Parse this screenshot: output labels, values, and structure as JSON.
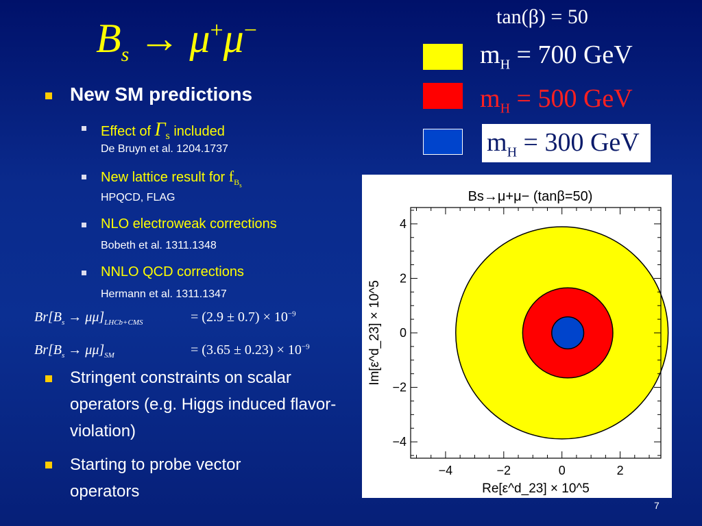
{
  "title": {
    "base": "B",
    "sub": "s",
    "arrow": "→",
    "mu1": "μ",
    "sup1": "+",
    "mu2": "μ",
    "sup2": "−"
  },
  "tanb_label": "tan(β) = 50",
  "legend": [
    {
      "color": "#ffff00",
      "m": "m",
      "sub": "H",
      "value": "= 700 GeV",
      "text_color": "#ffffff"
    },
    {
      "color": "#ff0000",
      "m": "m",
      "sub": "H",
      "value": "= 500 GeV",
      "text_color": "#ff2020"
    },
    {
      "color": "#0044cc",
      "m": "m",
      "sub": "H",
      "value": "= 300 GeV",
      "text_color": "#0a1a6a"
    }
  ],
  "bullets": {
    "main": "New SM predictions",
    "sub1_a": "Effect of",
    "sub1_symbol": "Γ",
    "sub1_symbol_sub": "s",
    "sub1_b": "included",
    "sub1_ref": "De Bruyn et al. 1204.1737",
    "sub2_a": "New lattice result for",
    "sub2_symbol": "f",
    "sub2_symbol_sub": "B",
    "sub2_symbol_subsub": "s",
    "sub2_ref": "HPQCD, FLAG",
    "sub3": "NLO electroweak corrections",
    "sub3_ref": "Bobeth et al. 1311.1348",
    "sub4": "NNLO QCD corrections",
    "sub4_ref": "Hermann et al. 1311.1347",
    "bottom1": "Stringent constraints on scalar operators (e.g. Higgs induced flavor-violation)",
    "bottom2": "Starting to probe vector operators"
  },
  "formulas": {
    "f1_lhs": "Br[B",
    "f1_lhs_sub": "s",
    "f1_arrow": "→ μμ]",
    "f1_label": "LHCb+CMS",
    "f1_rhs": "= (2.9 ± 0.7) × 10",
    "f1_exp": "−9",
    "f2_lhs": "Br[B",
    "f2_lhs_sub": "s",
    "f2_arrow": "→ μμ]",
    "f2_label": "SM",
    "f2_rhs": "= (3.65 ± 0.23) × 10",
    "f2_exp": "−9"
  },
  "chart_data": {
    "type": "scatter",
    "title": "Bs→μ+μ− (tanβ=50)",
    "xlabel": "Re[ε^d_23] × 10^5",
    "ylabel": "Im[ε^d_23] × 10^5",
    "xlim": [
      -5.2,
      3.4
    ],
    "ylim": [
      -4.6,
      4.6
    ],
    "xticks": [
      -4,
      -2,
      0,
      2
    ],
    "yticks": [
      -4,
      -2,
      0,
      2,
      4
    ],
    "xtick_labels": [
      "−4",
      "−2",
      "0",
      "2"
    ],
    "ytick_labels": [
      "−4",
      "−2",
      "0",
      "2",
      "4"
    ],
    "regions": [
      {
        "name": "m_H = 700 GeV",
        "shape": "circle",
        "cx": 0.0,
        "cy": 0.0,
        "r": 3.65,
        "color": "#ffff00"
      },
      {
        "name": "m_H = 500 GeV",
        "shape": "circle",
        "cx": 0.2,
        "cy": 0.0,
        "r": 1.55,
        "color": "#ff0000"
      },
      {
        "name": "m_H = 300 GeV",
        "shape": "circle",
        "cx": 0.2,
        "cy": 0.0,
        "r": 0.55,
        "color": "#0044cc"
      }
    ]
  },
  "page_number": "7"
}
